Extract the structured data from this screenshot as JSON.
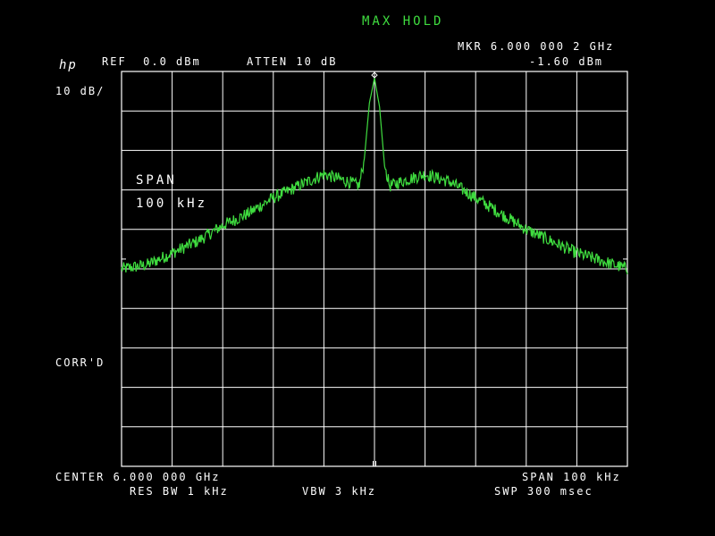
{
  "header": {
    "mode": "MAX HOLD",
    "marker_freq": "MKR 6.000 000 2 GHz",
    "marker_level": "-1.60 dBm",
    "logo": "hp",
    "ref_level": "REF  0.0 dBm",
    "attenuation": "ATTEN 10 dB",
    "scale": "10 dB/"
  },
  "side": {
    "span_label": "SPAN",
    "span_value": "100 kHz",
    "correction": "CORR'D"
  },
  "footer": {
    "center": "CENTER 6.000 000 GHz",
    "span": "SPAN 100 kHz",
    "res_bw": "RES BW 1 kHz",
    "vbw": "VBW 3 kHz",
    "sweep": "SWP 300 msec"
  },
  "colors": {
    "trace": "#3fdc3f",
    "text": "#ffffff",
    "grid": "#ffffff",
    "background": "#000000"
  },
  "chart_data": {
    "type": "line",
    "title": "",
    "xlabel": "",
    "ylabel": "",
    "x_unit": "kHz offset from 6.000 000 GHz",
    "xlim": [
      -50,
      50
    ],
    "ylim": [
      -100,
      0
    ],
    "grid": true,
    "x_divisions": 10,
    "y_divisions": 10,
    "series": [
      {
        "x": [
          -50,
          -45,
          -40,
          -35,
          -30,
          -25,
          -20,
          -15,
          -10,
          -5,
          -3,
          -2,
          -1,
          0,
          1,
          2,
          3,
          5,
          10,
          15,
          20,
          25,
          30,
          35,
          40,
          45,
          50
        ],
        "y": [
          -50,
          -49,
          -46,
          -43,
          -39,
          -36,
          -32,
          -29,
          -26,
          -28,
          -29,
          -22,
          -8,
          -1.6,
          -9,
          -24,
          -29,
          -28,
          -26,
          -28,
          -32,
          -36,
          -40,
          -43,
          -46,
          -48,
          -50
        ]
      }
    ],
    "marker": {
      "x": 0,
      "y": -1.6
    }
  }
}
